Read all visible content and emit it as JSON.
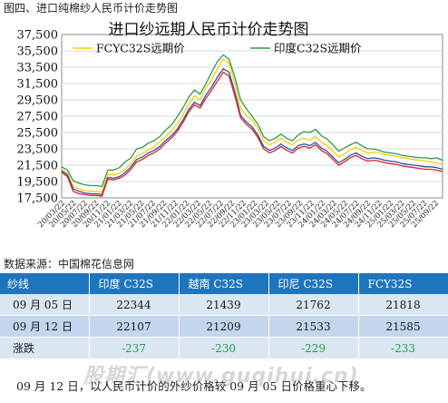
{
  "figure_caption": "图四、进口纯棉纱人民币计价走势图",
  "source_note": "数据来源：中国棉花信息网",
  "watermark": "股期汇(www.guqihui.cn)",
  "chart_data": {
    "type": "line",
    "title": "进口纱远期人民币计价走势图",
    "xlabel": "",
    "ylabel": "",
    "ylim": [
      17500,
      37500
    ],
    "yticks": [
      17500,
      19500,
      21500,
      23500,
      25500,
      27500,
      29500,
      31500,
      33500,
      35500,
      37500
    ],
    "ytick_labels": [
      "17,500",
      "19,500",
      "21,500",
      "23,500",
      "25,500",
      "27,500",
      "29,500",
      "31,500",
      "33,500",
      "35,500",
      "37,500"
    ],
    "xtick_labels": [
      "20/03/22",
      "20/05/22",
      "20/07/22",
      "20/09/22",
      "20/11/22",
      "21/01/22",
      "21/03/22",
      "21/05/22",
      "21/07/22",
      "21/09/22",
      "21/11/22",
      "22/01/22",
      "22/03/22",
      "22/05/22",
      "22/07/22",
      "22/09/22",
      "22/11/22",
      "23/01/22",
      "23/03/22",
      "23/05/22",
      "23/07/22",
      "23/09/22",
      "23/11/22",
      "24/01/22",
      "24/03/22",
      "24/05/22",
      "24/07/22",
      "24/09/22",
      "24/11/22",
      "25/01/22",
      "25/03/22",
      "25/05/22",
      "25/07/22",
      "25/09/22"
    ],
    "grid": true,
    "legend": "top",
    "x_count": 67,
    "series": [
      {
        "name": "FCYC32S远期价",
        "color": "#f5d000",
        "values": [
          21000,
          20500,
          18900,
          18600,
          18400,
          18300,
          18300,
          18200,
          20400,
          20300,
          20500,
          21000,
          21700,
          22600,
          22900,
          23400,
          23700,
          24400,
          25000,
          25700,
          26500,
          27600,
          29000,
          30000,
          29500,
          31000,
          32000,
          33300,
          34500,
          34000,
          31500,
          28500,
          27600,
          27000,
          26000,
          24500,
          24000,
          24300,
          24800,
          24300,
          24000,
          24600,
          24800,
          24600,
          25000,
          24300,
          23900,
          23200,
          22500,
          22900,
          23400,
          23700,
          23300,
          23000,
          23100,
          23000,
          22800,
          22700,
          22600,
          22400,
          22300,
          22200,
          22100,
          22000,
          21900,
          21800,
          21600
        ]
      },
      {
        "name": "印度C32S远期价",
        "color": "#2e9a4c",
        "values": [
          21300,
          20900,
          19600,
          19300,
          19100,
          19000,
          19000,
          18900,
          20900,
          20900,
          21200,
          21900,
          22400,
          23500,
          23700,
          24200,
          24500,
          25000,
          25800,
          26400,
          27400,
          28500,
          29800,
          30700,
          30200,
          31500,
          32900,
          34200,
          35000,
          34500,
          32300,
          29500,
          28400,
          27500,
          26500,
          25000,
          24500,
          24800,
          25300,
          24800,
          24500,
          25200,
          25600,
          25500,
          25900,
          25100,
          24700,
          24000,
          23200,
          23600,
          24000,
          24300,
          23900,
          23500,
          23500,
          23300,
          23100,
          23000,
          22900,
          22700,
          22600,
          22500,
          22400,
          22400,
          22300,
          22400,
          22100
        ]
      },
      {
        "name": "越南C32S",
        "color": "#2f4fa8",
        "values": [
          20800,
          20300,
          18600,
          18300,
          18100,
          18000,
          18000,
          17900,
          20000,
          19900,
          20100,
          20600,
          21300,
          22200,
          22500,
          23000,
          23300,
          23800,
          24500,
          25100,
          25900,
          27000,
          28300,
          29200,
          28800,
          30100,
          31100,
          32300,
          33300,
          32900,
          30500,
          27600,
          26800,
          26200,
          25200,
          23800,
          23300,
          23600,
          24100,
          23600,
          23300,
          23900,
          24100,
          23900,
          24300,
          23600,
          23200,
          22500,
          21800,
          22200,
          22700,
          23000,
          22600,
          22300,
          22400,
          22300,
          22100,
          22000,
          21900,
          21700,
          21600,
          21500,
          21400,
          21300,
          21300,
          21200,
          21000
        ]
      },
      {
        "name": "印尼C32S",
        "color": "#e02424",
        "values": [
          20600,
          20100,
          18300,
          18000,
          17900,
          17800,
          17800,
          17700,
          19800,
          19700,
          19900,
          20300,
          21000,
          21900,
          22200,
          22700,
          23000,
          23500,
          24200,
          24800,
          25600,
          26700,
          28000,
          28900,
          28500,
          29700,
          30700,
          31800,
          32900,
          32400,
          30000,
          27300,
          26500,
          25900,
          24900,
          23500,
          23000,
          23300,
          23800,
          23300,
          23000,
          23600,
          23800,
          23600,
          24000,
          23300,
          22900,
          22200,
          21500,
          21900,
          22400,
          22700,
          22300,
          22000,
          22100,
          22000,
          21800,
          21700,
          21600,
          21400,
          21300,
          21200,
          21100,
          21000,
          21000,
          20900,
          20700
        ]
      }
    ]
  },
  "table": {
    "headers": [
      "纱线",
      "印度 C32S",
      "越南 C32S",
      "印尼 C32S",
      "FCY32S"
    ],
    "rows": [
      {
        "date": "09 月 05 日",
        "values": [
          "22344",
          "21439",
          "21762",
          "21818"
        ]
      },
      {
        "date": "09 月 12 日",
        "values": [
          "22107",
          "21209",
          "21533",
          "21585"
        ]
      },
      {
        "date": "涨跌",
        "values": [
          "-237",
          "-230",
          "-229",
          "-233"
        ]
      }
    ]
  },
  "footer_note": "09 月 12 日，以人民币计价的外纱价格较 09 月 05 日价格重心下移。"
}
